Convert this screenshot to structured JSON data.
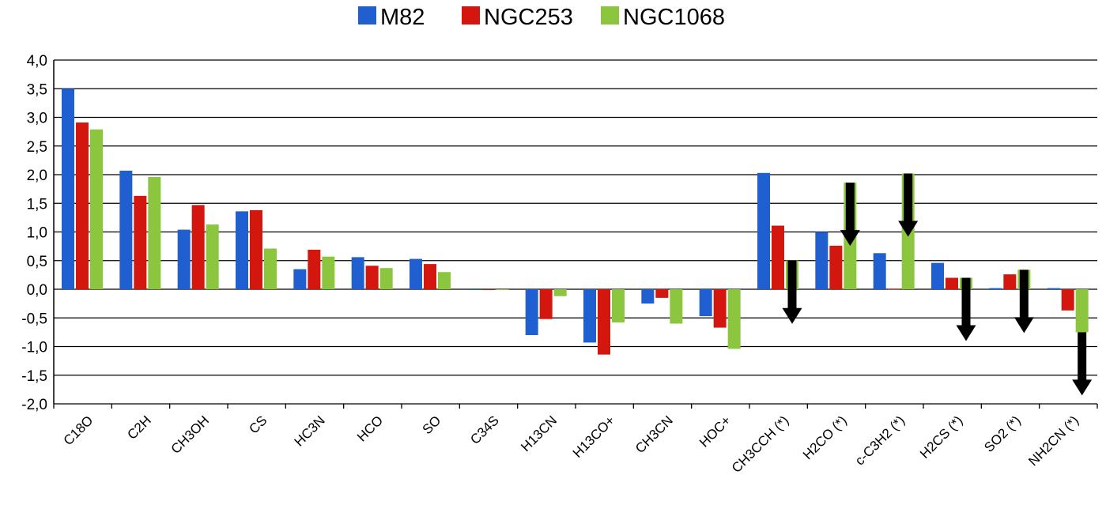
{
  "chart_data": {
    "type": "bar",
    "categories": [
      "C18O",
      "C2H",
      "CH3OH",
      "CS",
      "HC3N",
      "HCO",
      "SO",
      "C34S",
      "H13CN",
      "H13CO+",
      "CH3CN",
      "HOC+",
      "CH3CCH (*)",
      "H2CO (*)",
      "c-C3H2 (*)",
      "H2CS (*)",
      "SO2 (*)",
      "NH2CN (*)"
    ],
    "series": [
      {
        "name": "M82",
        "color": "#1f5fd0",
        "values": [
          3.5,
          2.07,
          1.04,
          1.36,
          0.35,
          0.56,
          0.53,
          0.0,
          -0.8,
          -0.93,
          -0.25,
          -0.47,
          2.03,
          1.0,
          0.63,
          0.46,
          0.02,
          0.02
        ]
      },
      {
        "name": "NGC253",
        "color": "#d3170e",
        "values": [
          2.91,
          1.63,
          1.47,
          1.38,
          0.69,
          0.41,
          0.44,
          0.0,
          -0.52,
          -1.14,
          -0.15,
          -0.67,
          1.11,
          0.76,
          0.01,
          0.2,
          0.26,
          -0.37
        ]
      },
      {
        "name": "NGC1068",
        "color": "#8cc63f",
        "values": [
          2.79,
          1.96,
          1.13,
          0.71,
          0.57,
          0.37,
          0.3,
          0.0,
          -0.12,
          -0.58,
          -0.6,
          -1.04,
          0.5,
          1.86,
          2.02,
          0.2,
          0.34,
          -0.75
        ]
      }
    ],
    "upper_limit_arrows": [
      {
        "category": "CH3CCH (*)",
        "series": "NGC1068"
      },
      {
        "category": "H2CO (*)",
        "series": "NGC1068"
      },
      {
        "category": "c-C3H2 (*)",
        "series": "NGC1068"
      },
      {
        "category": "H2CS (*)",
        "series": "NGC1068"
      },
      {
        "category": "SO2 (*)",
        "series": "NGC1068"
      },
      {
        "category": "NH2CN (*)",
        "series": "NGC1068"
      }
    ],
    "yticks": [
      "4,0",
      "3,5",
      "3,0",
      "2,5",
      "2,0",
      "1,5",
      "1,0",
      "0,5",
      "0,0",
      "-0,5",
      "-1,0",
      "-1,5",
      "-2,0"
    ],
    "ylim": [
      -2.0,
      4.0
    ],
    "ystep": 0.5,
    "grid": true,
    "legend": "top-center",
    "title": "",
    "xlabel": "",
    "ylabel": ""
  }
}
